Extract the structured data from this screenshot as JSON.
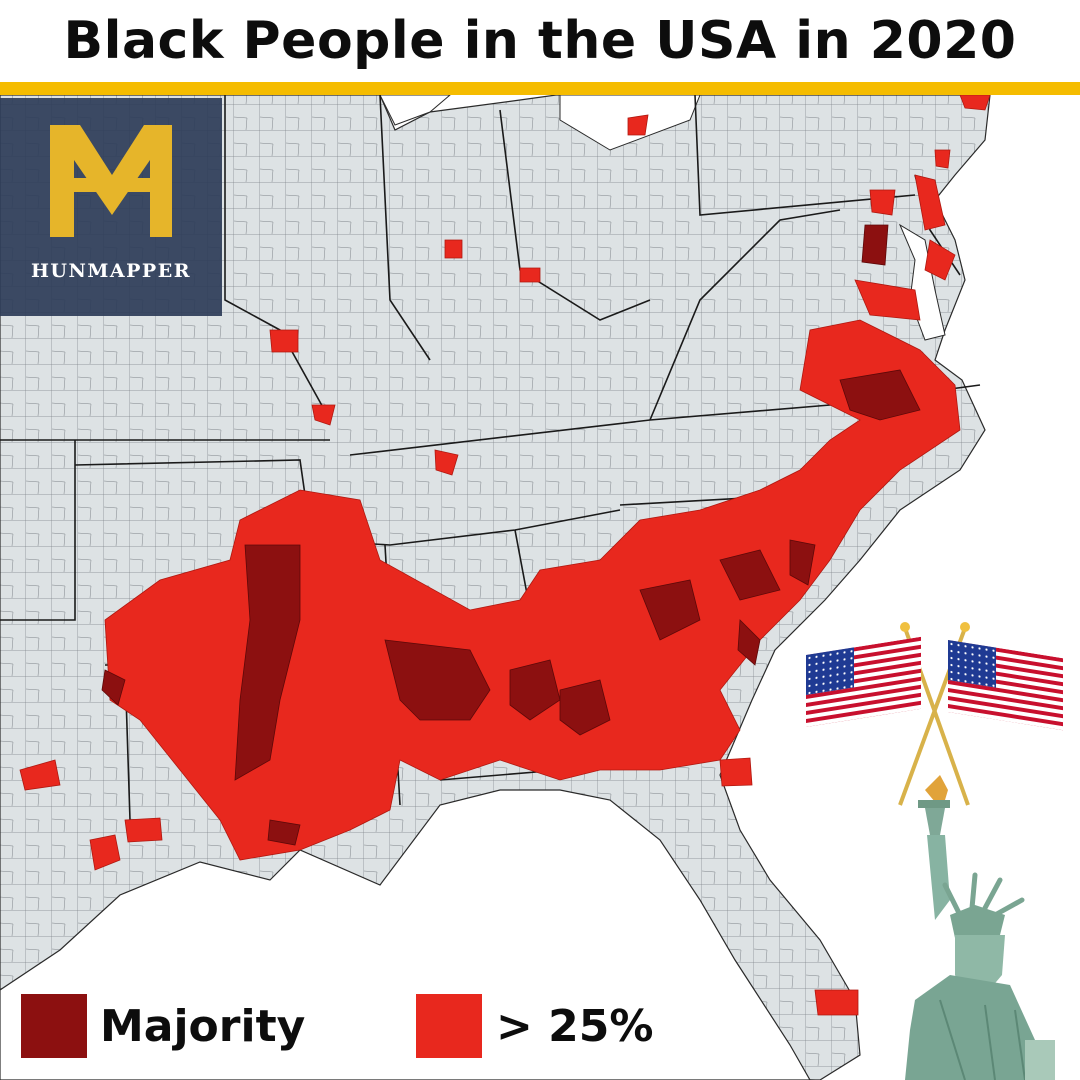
{
  "title": "Black People in the USA in 2020",
  "brand": {
    "name": "HUNMAPPER",
    "monogram": "MH"
  },
  "colors": {
    "title_rule": "#f5bc00",
    "land": "#dde2e4",
    "water": "#ffffff",
    "majority": "#8c1010",
    "over_25": "#e8281e",
    "borders": "#222222",
    "logo_bg": "#2c3c58",
    "logo_gold": "#e6b52a"
  },
  "legend": [
    {
      "label": "Majority",
      "color": "#8c1010"
    },
    {
      "label": "> 25%",
      "color": "#e8281e"
    }
  ],
  "icons": [
    "us-flag-icon",
    "statue-of-liberty-icon"
  ]
}
